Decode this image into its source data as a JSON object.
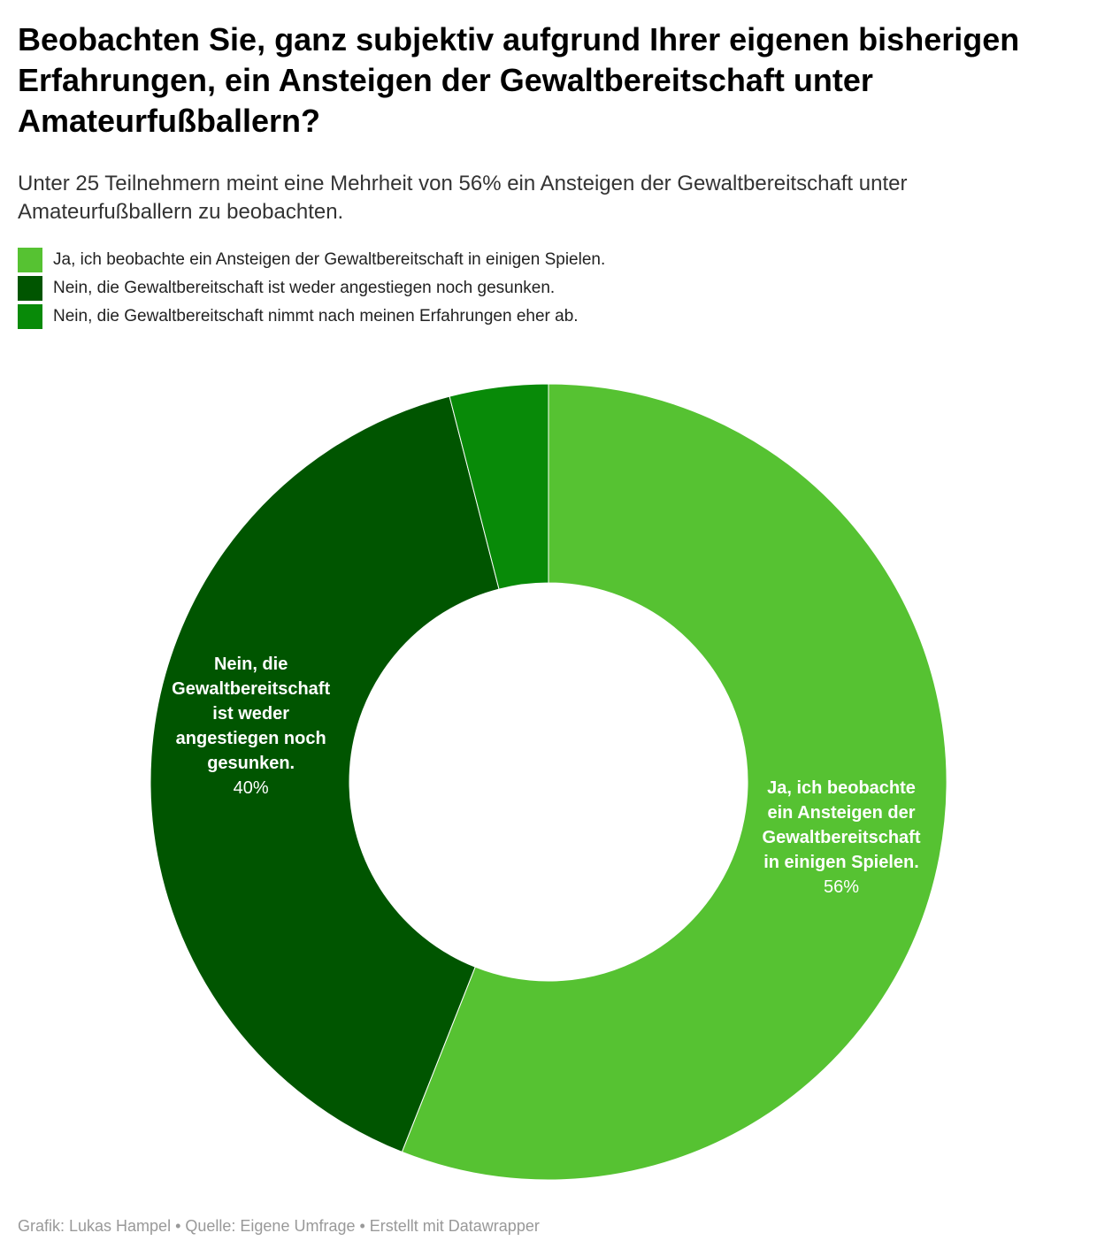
{
  "title": "Beobachten Sie, ganz subjektiv aufgrund Ihrer eigenen bisherigen Erfahrungen, ein Ansteigen der Gewaltbereitschaft unter Amateurfußballern?",
  "subtitle": "Unter 25 Teilnehmern meint eine Mehrheit von 56% ein Ansteigen der Gewaltbereitschaft unter Amateurfußballern zu beobachten.",
  "footer": "Grafik: Lukas Hampel • Quelle: Eigene Umfrage • Erstellt mit Datawrapper",
  "chart_data": {
    "type": "pie",
    "variant": "donut",
    "title": "Beobachten Sie, ganz subjektiv aufgrund Ihrer eigenen bisherigen Erfahrungen, ein Ansteigen der Gewaltbereitschaft unter Amateurfußballern?",
    "legend_placement": "top-left",
    "slices": [
      {
        "label": "Ja, ich beobachte ein Ansteigen der Gewaltbereitschaft in einigen Spielen.",
        "chart_label": "Ja, ich beobachte\nein Ansteigen der\nGewaltbereitschaft\nin einigen Spielen.",
        "value": 56,
        "value_label": "56%",
        "color": "#56c232"
      },
      {
        "label": "Nein, die Gewaltbereitschaft ist weder angestiegen noch gesunken.",
        "chart_label": "Nein, die\nGewaltbereitschaft\nist weder\nangestiegen noch\ngesunken.",
        "value": 40,
        "value_label": "40%",
        "color": "#005500"
      },
      {
        "label": "Nein, die Gewaltbereitschaft nimmt nach meinen Erfahrungen eher ab.",
        "chart_label": "",
        "value": 4,
        "value_label": "",
        "color": "#088a08"
      }
    ]
  }
}
